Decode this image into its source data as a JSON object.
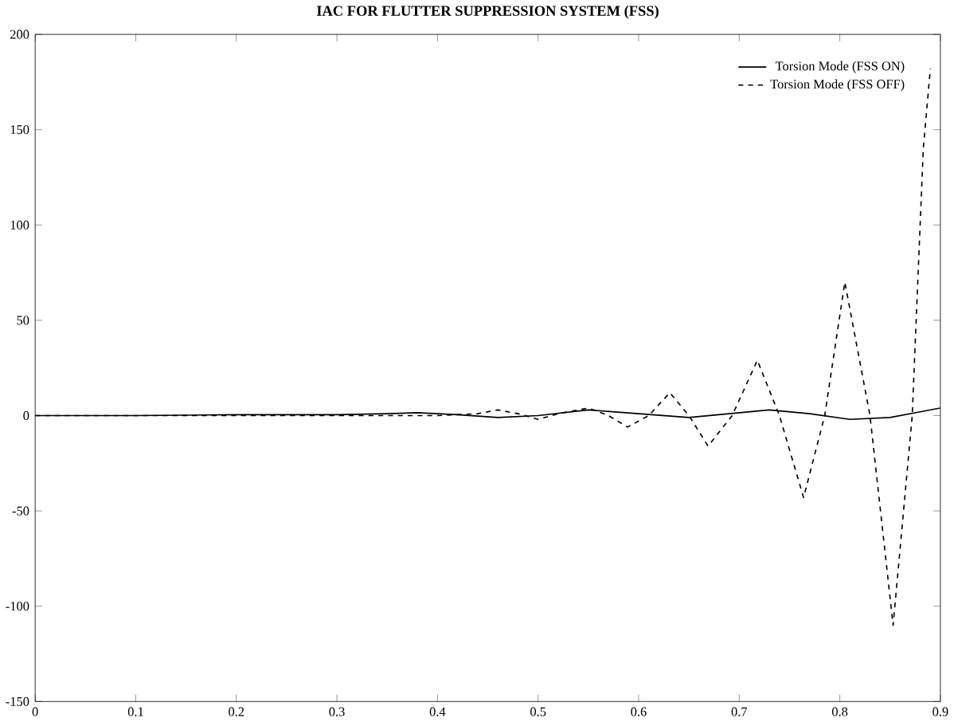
{
  "chart_data": {
    "type": "line",
    "title": "IAC FOR FLUTTER SUPPRESSION SYSTEM (FSS)",
    "xlim": [
      0,
      0.9
    ],
    "ylim": [
      -150,
      200
    ],
    "xticks": [
      0,
      0.1,
      0.2,
      0.3,
      0.4,
      0.5,
      0.6,
      0.7,
      0.8,
      0.9
    ],
    "yticks": [
      -150,
      -100,
      -50,
      0,
      50,
      100,
      150,
      200
    ],
    "legend": "top right",
    "grid": false,
    "series": [
      {
        "name": "Torsion Mode  (FSS ON)",
        "color": "#000000",
        "line_style": "solid",
        "x": [
          0,
          0.1,
          0.2,
          0.3,
          0.35,
          0.38,
          0.42,
          0.46,
          0.5,
          0.55,
          0.6,
          0.65,
          0.69,
          0.73,
          0.77,
          0.81,
          0.85,
          0.88,
          0.9
        ],
        "values": [
          0,
          0,
          0.5,
          0.5,
          1,
          1.5,
          0.5,
          -1,
          0,
          3,
          1,
          -1,
          1,
          3,
          1,
          -2,
          -1,
          2,
          4
        ]
      },
      {
        "name": "Torsion Mode (FSS OFF)",
        "color": "#000000",
        "line_style": "dashed",
        "x": [
          0,
          0.1,
          0.2,
          0.3,
          0.4,
          0.44,
          0.46,
          0.48,
          0.5,
          0.52,
          0.55,
          0.57,
          0.589,
          0.61,
          0.631,
          0.65,
          0.669,
          0.693,
          0.718,
          0.74,
          0.764,
          0.785,
          0.805,
          0.83,
          0.853,
          0.872,
          0.883,
          0.89
        ],
        "values": [
          0,
          0,
          0,
          0,
          0,
          1,
          3,
          1,
          -2,
          1,
          4,
          0,
          -6,
          0,
          12,
          0,
          -16,
          0,
          29,
          0,
          -43,
          0,
          70,
          0,
          -110,
          0,
          140,
          182
        ]
      }
    ]
  }
}
